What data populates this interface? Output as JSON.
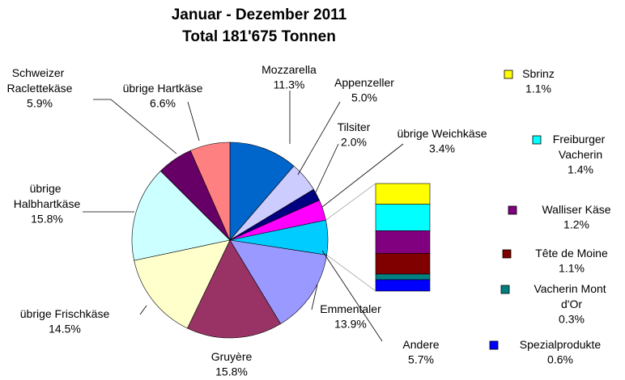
{
  "chart_data": {
    "type": "pie",
    "title": "Januar - Dezember 2011",
    "subtitle": "Total 181'675 Tonnen",
    "categories": [
      "Mozzarella",
      "Appenzeller",
      "Tilsiter",
      "übrige Weichkäse",
      "Andere",
      "Emmentaler",
      "Gruyère",
      "übrige Frischkäse",
      "übrige Halbhartkäse",
      "Schweizer Raclettekäse",
      "übrige Hartkäse"
    ],
    "values": [
      11.3,
      5.0,
      2.0,
      3.4,
      5.7,
      13.9,
      15.8,
      14.5,
      15.8,
      5.9,
      6.6
    ],
    "value_labels": [
      "11.3%",
      "5.0%",
      "2.0%",
      "3.4%",
      "5.7%",
      "13.9%",
      "15.8%",
      "14.5%",
      "15.8%",
      "5.9%",
      "6.6%"
    ],
    "colors": [
      "#0066cc",
      "#ccccff",
      "#000080",
      "#ff00ff",
      "#00ccff",
      "#9999ff",
      "#993366",
      "#ffffcc",
      "#ccffff",
      "#660066",
      "#ff8080"
    ],
    "breakdown": {
      "categories": [
        "Sbrinz",
        "Freiburger Vacherin",
        "Walliser Käse",
        "Tête de Moine",
        "Vacherin Mont d'Or",
        "Spezialprodukte"
      ],
      "values": [
        1.1,
        1.4,
        1.2,
        1.1,
        0.3,
        0.6
      ],
      "value_labels": [
        "1.1%",
        "1.4%",
        "1.2%",
        "1.1%",
        "0.3%",
        "0.6%"
      ],
      "colors": [
        "#ffff00",
        "#00ffff",
        "#800080",
        "#800000",
        "#008080",
        "#0000ff"
      ]
    }
  }
}
